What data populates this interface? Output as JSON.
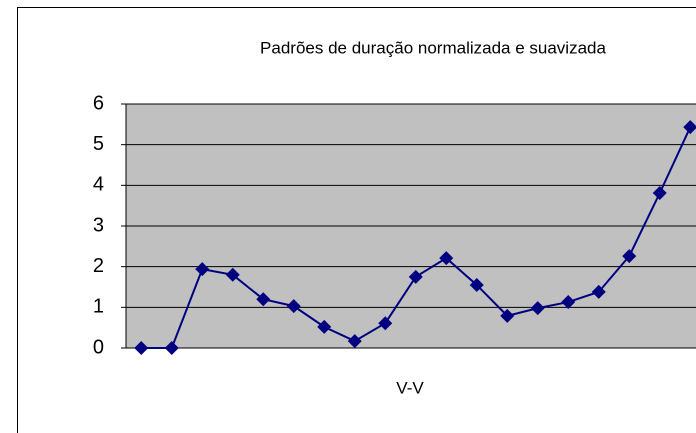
{
  "chart_data": {
    "type": "line",
    "title": "Padrões de duração normalizada e suavizada",
    "x_label": "V-V",
    "categories": [
      null,
      null,
      null,
      null,
      null,
      null,
      null,
      null,
      null,
      null,
      null,
      null,
      null,
      null,
      null,
      null,
      null,
      null,
      null
    ],
    "values": [
      0,
      0,
      1.94,
      1.8,
      1.2,
      1.03,
      0.52,
      0.17,
      0.61,
      1.75,
      2.21,
      1.55,
      0.79,
      0.98,
      1.13,
      1.38,
      2.26,
      3.81,
      5.43
    ],
    "color": "#000080",
    "ylim": [
      0,
      6
    ],
    "yticks": [
      0,
      1,
      2,
      3,
      4,
      5,
      6
    ],
    "grid": true
  }
}
